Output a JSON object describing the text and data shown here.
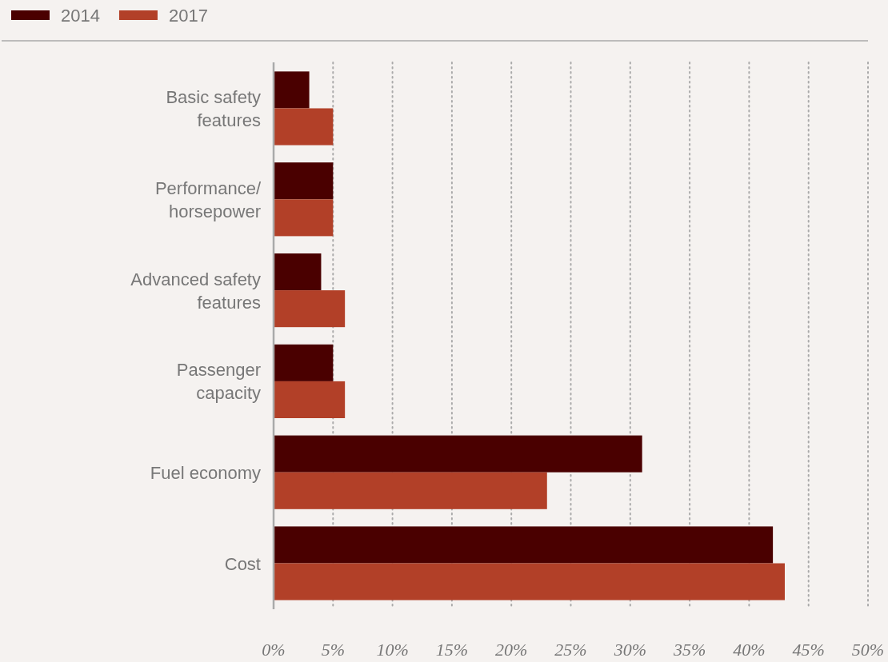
{
  "chart_data": {
    "type": "bar",
    "orientation": "horizontal",
    "categories": [
      "Basic safety features",
      "Performance/ horsepower",
      "Advanced safety features",
      "Passenger capacity",
      "Fuel economy",
      "Cost"
    ],
    "series": [
      {
        "name": "2014",
        "color": "#4a0000",
        "values": [
          3,
          5,
          4,
          5,
          31,
          42
        ]
      },
      {
        "name": "2017",
        "color": "#b24028",
        "values": [
          5,
          5,
          6,
          6,
          23,
          43
        ]
      }
    ],
    "xlim": [
      0,
      50
    ],
    "xticks": [
      {
        "value": 0,
        "label": "0%"
      },
      {
        "value": 5,
        "label": "5%"
      },
      {
        "value": 10,
        "label": "10%"
      },
      {
        "value": 15,
        "label": "15%"
      },
      {
        "value": 20,
        "label": "20%"
      },
      {
        "value": 25,
        "label": "25%"
      },
      {
        "value": 30,
        "label": "30%"
      },
      {
        "value": 35,
        "label": "35%"
      },
      {
        "value": 40,
        "label": "40%"
      },
      {
        "value": 45,
        "label": "45%"
      },
      {
        "value": 50,
        "label": "50%"
      }
    ],
    "grid": "x",
    "legend": "top left"
  }
}
